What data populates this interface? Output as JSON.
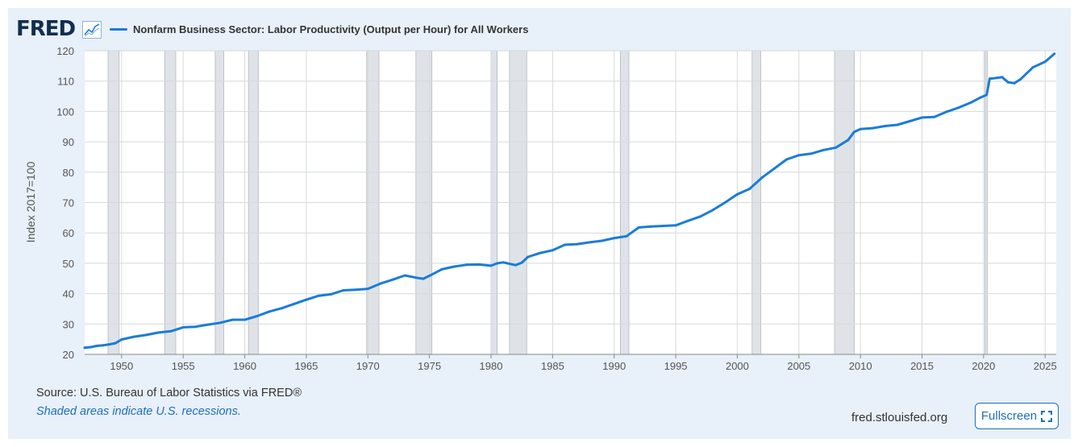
{
  "brand": {
    "logo_text": "FRED"
  },
  "legend": {
    "series_label": "Nonfarm Business Sector: Labor Productivity (Output per Hour) for All Workers",
    "color": "#1a7cd9"
  },
  "footer": {
    "source": "Source: U.S. Bureau of Labor Statistics via FRED®",
    "recession_note": "Shaded areas indicate U.S. recessions.",
    "site": "fred.stlouisfed.org",
    "fullscreen_label": "Fullscreen"
  },
  "chart_data": {
    "type": "line",
    "title": "Nonfarm Business Sector: Labor Productivity (Output per Hour) for All Workers",
    "xlabel": "",
    "ylabel": "Index 2017=100",
    "xlim": [
      1947,
      2025.9
    ],
    "ylim": [
      20,
      120
    ],
    "yticks": [
      20,
      30,
      40,
      50,
      60,
      70,
      80,
      90,
      100,
      110,
      120
    ],
    "xticks": [
      1950,
      1955,
      1960,
      1965,
      1970,
      1975,
      1980,
      1985,
      1990,
      1995,
      2000,
      2005,
      2010,
      2015,
      2020,
      2025
    ],
    "grid": true,
    "recessions": [
      [
        1948.9,
        1949.8
      ],
      [
        1953.5,
        1954.4
      ],
      [
        1957.6,
        1958.3
      ],
      [
        1960.3,
        1961.1
      ],
      [
        1969.9,
        1970.9
      ],
      [
        1973.9,
        1975.2
      ],
      [
        1980.0,
        1980.5
      ],
      [
        1981.5,
        1982.9
      ],
      [
        1990.5,
        1991.2
      ],
      [
        2001.2,
        2001.9
      ],
      [
        2007.9,
        2009.5
      ],
      [
        2020.1,
        2020.3
      ]
    ],
    "series": [
      {
        "name": "Nonfarm Business Sector: Labor Productivity (Output per Hour) for All Workers",
        "color": "#1a7cd9",
        "x": [
          1947.0,
          1947.5,
          1948.0,
          1948.5,
          1949.0,
          1949.5,
          1950.0,
          1951.0,
          1952.0,
          1953.0,
          1954.0,
          1955.0,
          1956.0,
          1957.0,
          1958.0,
          1959.0,
          1960.0,
          1961.0,
          1962.0,
          1963.0,
          1964.0,
          1965.0,
          1966.0,
          1967.0,
          1968.0,
          1969.0,
          1970.0,
          1971.0,
          1972.0,
          1973.0,
          1974.0,
          1974.5,
          1975.0,
          1976.0,
          1977.0,
          1978.0,
          1979.0,
          1980.0,
          1980.5,
          1981.0,
          1982.0,
          1982.5,
          1983.0,
          1984.0,
          1985.0,
          1986.0,
          1987.0,
          1988.0,
          1989.0,
          1990.0,
          1991.0,
          1992.0,
          1993.0,
          1994.0,
          1995.0,
          1996.0,
          1997.0,
          1998.0,
          1999.0,
          2000.0,
          2001.0,
          2002.0,
          2003.0,
          2004.0,
          2005.0,
          2006.0,
          2007.0,
          2008.0,
          2009.0,
          2009.5,
          2010.0,
          2011.0,
          2012.0,
          2013.0,
          2014.0,
          2015.0,
          2016.0,
          2017.0,
          2018.0,
          2019.0,
          2019.75,
          2020.25,
          2020.5,
          2021.0,
          2021.5,
          2022.0,
          2022.5,
          2023.0,
          2024.0,
          2025.0,
          2025.75
        ],
        "values": [
          22.2,
          22.4,
          22.8,
          23.0,
          23.3,
          23.7,
          24.9,
          25.8,
          26.4,
          27.2,
          27.6,
          28.9,
          29.1,
          29.8,
          30.4,
          31.4,
          31.4,
          32.6,
          34.1,
          35.2,
          36.6,
          38.0,
          39.3,
          39.8,
          41.1,
          41.3,
          41.6,
          43.3,
          44.6,
          46.0,
          45.2,
          44.9,
          45.9,
          48.0,
          48.9,
          49.5,
          49.6,
          49.2,
          50.0,
          50.3,
          49.4,
          50.2,
          52.1,
          53.4,
          54.3,
          56.1,
          56.3,
          56.9,
          57.4,
          58.3,
          58.9,
          61.8,
          62.1,
          62.3,
          62.5,
          64.0,
          65.4,
          67.5,
          70.0,
          72.7,
          74.5,
          78.2,
          81.2,
          84.2,
          85.6,
          86.1,
          87.3,
          88.1,
          90.6,
          93.3,
          94.2,
          94.5,
          95.2,
          95.6,
          96.8,
          98.0,
          98.2,
          99.9,
          101.3,
          103.0,
          104.6,
          105.5,
          110.8,
          111.0,
          111.3,
          109.6,
          109.3,
          110.6,
          114.5,
          116.4,
          119.0
        ]
      }
    ]
  }
}
